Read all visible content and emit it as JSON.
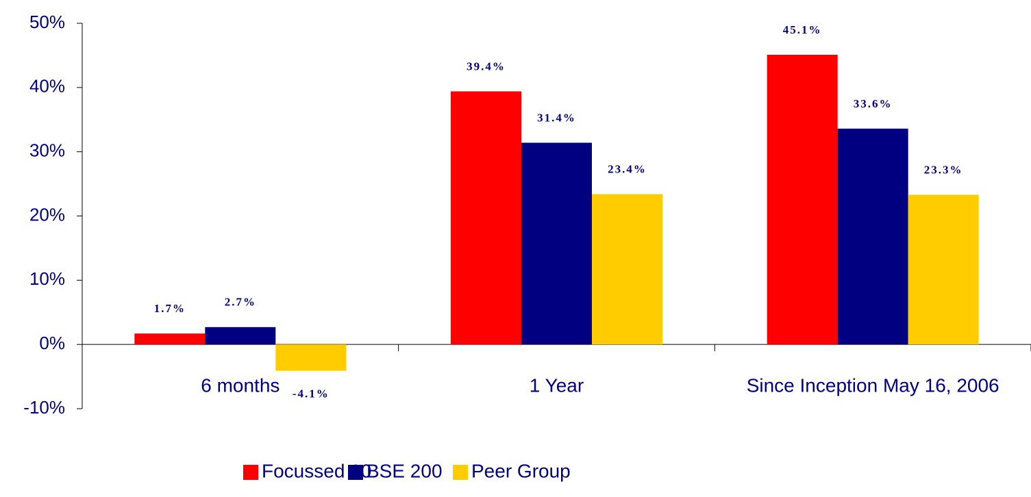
{
  "chart_data": {
    "type": "bar",
    "categories": [
      "6 months",
      "1 Year",
      "Since Inception May 16, 2006"
    ],
    "series": [
      {
        "name": "Focussed 10",
        "color": "#ff0000",
        "values": [
          1.7,
          39.4,
          45.1
        ],
        "value_labels": [
          "1.7%",
          "39.4%",
          "45.1%"
        ]
      },
      {
        "name": "BSE 200",
        "color": "#000080",
        "values": [
          2.7,
          31.4,
          33.6
        ],
        "value_labels": [
          "2.7%",
          "31.4%",
          "33.6%"
        ]
      },
      {
        "name": "Peer Group",
        "color": "#ffcc00",
        "values": [
          -4.1,
          23.4,
          23.3
        ],
        "value_labels": [
          "-4.1%",
          "23.4%",
          "23.3%"
        ]
      }
    ],
    "ylim": [
      -10,
      50
    ],
    "yticks": [
      {
        "value": -10,
        "label": "-10%"
      },
      {
        "value": 0,
        "label": "0%"
      },
      {
        "value": 10,
        "label": "10%"
      },
      {
        "value": 20,
        "label": "20%"
      },
      {
        "value": 30,
        "label": "30%"
      },
      {
        "value": 40,
        "label": "40%"
      },
      {
        "value": 50,
        "label": "50%"
      }
    ],
    "legend": "bottom"
  }
}
